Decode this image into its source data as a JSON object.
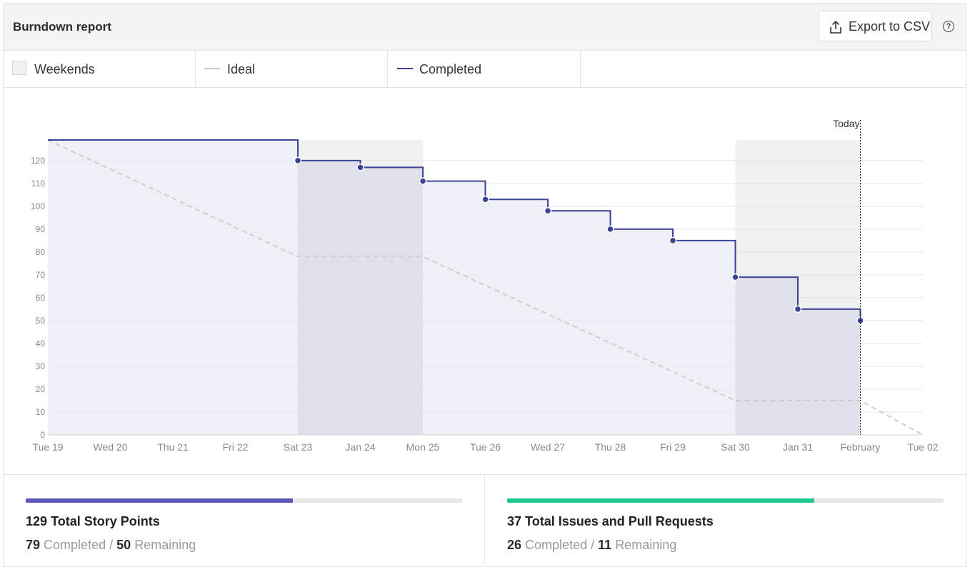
{
  "header": {
    "title": "Burndown report",
    "export_label": "Export to CSV",
    "help_label": "?"
  },
  "legend": [
    {
      "label": "Weekends",
      "kind": "box",
      "color": "#f1f1f1"
    },
    {
      "label": "Ideal",
      "kind": "line",
      "color": "#c8c8c8"
    },
    {
      "label": "Completed",
      "kind": "line",
      "color": "#3a4396"
    }
  ],
  "chart_data": {
    "type": "line",
    "x_categories": [
      "Tue 19",
      "Wed 20",
      "Thu 21",
      "Fri 22",
      "Sat 23",
      "Jan 24",
      "Mon 25",
      "Tue 26",
      "Wed 27",
      "Thu 28",
      "Fri 29",
      "Sat 30",
      "Jan 31",
      "February",
      "Tue 02"
    ],
    "y_ticks": [
      0,
      10,
      20,
      30,
      40,
      50,
      60,
      70,
      80,
      90,
      100,
      110,
      120
    ],
    "ylim": [
      0,
      129
    ],
    "weekend_ranges": [
      [
        4,
        6
      ],
      [
        11,
        13
      ]
    ],
    "today_index": 13,
    "today_label": "Today",
    "series": [
      {
        "name": "Ideal",
        "color": "#cfcfcf",
        "style": "dashed",
        "points": [
          [
            0,
            129
          ],
          [
            4,
            78
          ],
          [
            6,
            78
          ],
          [
            11,
            15
          ],
          [
            13,
            15
          ],
          [
            14,
            0
          ]
        ]
      },
      {
        "name": "Completed",
        "color": "#3a4396",
        "style": "step",
        "points": [
          [
            0,
            129
          ],
          [
            4,
            120
          ],
          [
            5,
            117
          ],
          [
            6,
            111
          ],
          [
            7,
            103
          ],
          [
            8,
            98
          ],
          [
            9,
            90
          ],
          [
            10,
            85
          ],
          [
            11,
            69
          ],
          [
            12,
            55
          ],
          [
            13,
            50
          ]
        ]
      }
    ],
    "colors": {
      "area_fill": "#e9e9f6",
      "weekend_fill": "#f0f0f0",
      "weekend_area_fill": "#e0e0eb",
      "grid": "#e4e4e4",
      "tick_text": "#8a8a8a"
    }
  },
  "stats": [
    {
      "total": "129",
      "title_suffix": "Total Story Points",
      "completed": "79",
      "remaining": "50",
      "completed_label": "Completed",
      "remaining_label": "Remaining",
      "separator": "/",
      "progress": 0.612,
      "bar_color": "#5b59b5"
    },
    {
      "total": "37",
      "title_suffix": "Total Issues and Pull Requests",
      "completed": "26",
      "remaining": "11",
      "completed_label": "Completed",
      "remaining_label": "Remaining",
      "separator": "/",
      "progress": 0.703,
      "bar_color": "#1ec88e"
    }
  ]
}
